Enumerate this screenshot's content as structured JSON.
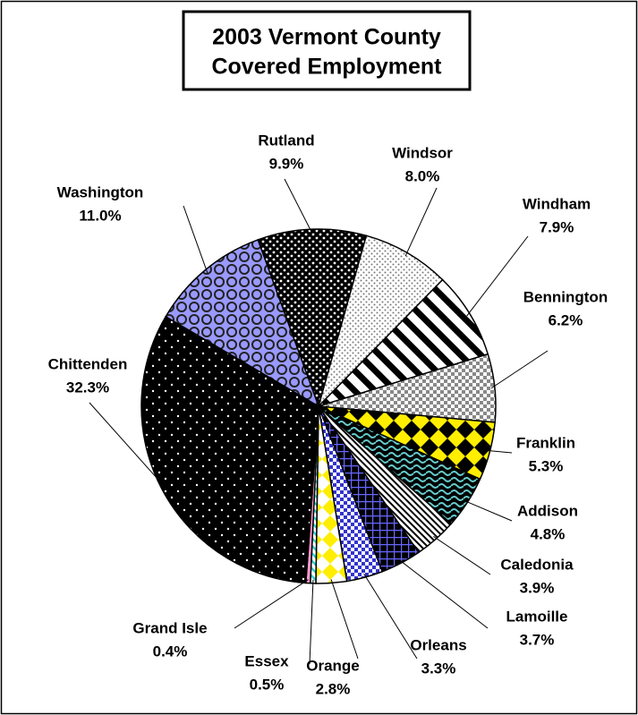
{
  "chart_data": {
    "type": "pie",
    "title": [
      "2003 Vermont County",
      "Covered Employment"
    ],
    "categories": [
      "Rutland",
      "Windsor",
      "Windham",
      "Bennington",
      "Franklin",
      "Addison",
      "Caledonia",
      "Lamoille",
      "Orleans",
      "Orange",
      "Essex",
      "Grand Isle",
      "Chittenden",
      "Washington"
    ],
    "values": [
      9.9,
      8.0,
      7.9,
      6.2,
      5.3,
      4.8,
      3.9,
      3.7,
      3.3,
      2.8,
      0.5,
      0.4,
      32.3,
      11.0
    ],
    "value_labels": [
      "9.9%",
      "8.0%",
      "7.9%",
      "6.2%",
      "5.3%",
      "4.8%",
      "3.9%",
      "3.7%",
      "3.3%",
      "2.8%",
      "0.5%",
      "0.4%",
      "32.3%",
      "11.0%"
    ],
    "colors": [
      "#000000",
      "#ffffff",
      "#ffffff",
      "#ffffff",
      "#000000",
      "#000000",
      "#ffffff",
      "#000000",
      "#ffffff",
      "#ffffff",
      "#ffffff",
      "#ff99cc",
      "#000000",
      "#9999ff"
    ]
  }
}
